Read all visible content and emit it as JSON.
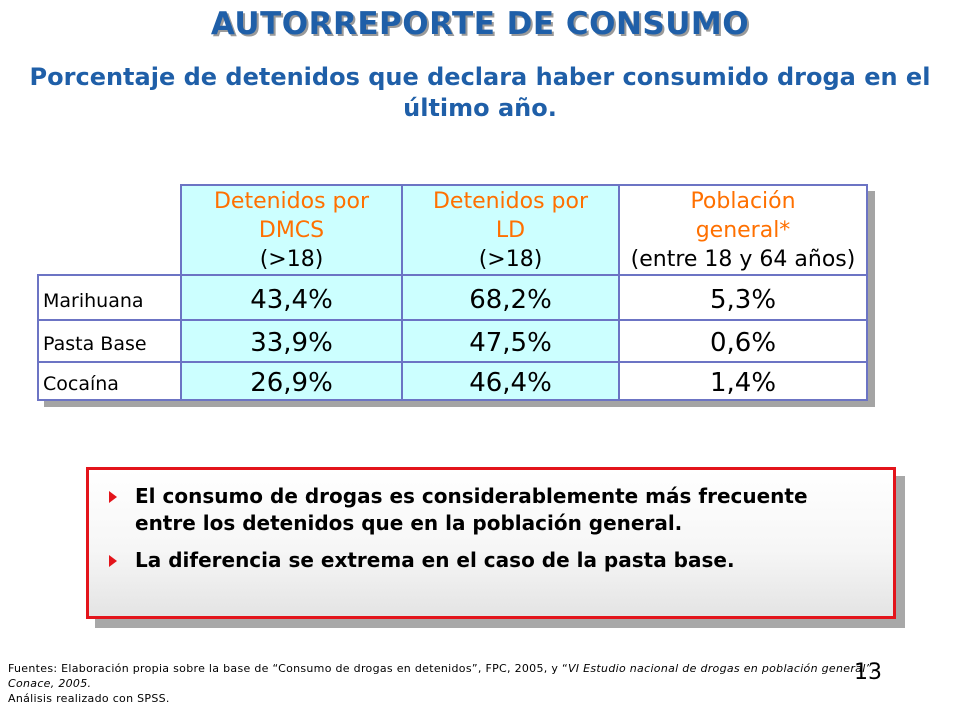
{
  "slide": {
    "title": "AUTORREPORTE DE CONSUMO",
    "subtitle": "Porcentaje de detenidos que declara haber consumido droga en el último año."
  },
  "table": {
    "headers": [
      {
        "line1": "Detenidos por",
        "line2": "DMCS",
        "line3": "(>18)"
      },
      {
        "line1": "Detenidos por",
        "line2": "LD",
        "line3": "(>18)"
      },
      {
        "line1": "Población",
        "line2": "general*",
        "line3": "(entre 18 y 64 años)"
      }
    ],
    "rows": [
      {
        "label": "Marihuana",
        "values": [
          "43,4%",
          "68,2%",
          "5,3%"
        ]
      },
      {
        "label": "Pasta Base",
        "values": [
          "33,9%",
          "47,5%",
          "0,6%"
        ]
      },
      {
        "label": "Cocaína",
        "values": [
          "26,9%",
          "46,4%",
          "1,4%"
        ]
      }
    ]
  },
  "callout": {
    "bullets": [
      "El consumo de drogas es considerablemente más frecuente entre los detenidos que en la población general.",
      "La diferencia se extrema en el caso de la pasta base."
    ]
  },
  "footnote": {
    "part1": "Fuentes: Elaboración propia sobre la base de “Consumo de drogas en detenidos”, FPC, 2005, y “",
    "part2_italic": "VI Estudio nacional de drogas en población general”, Conace, 2005.",
    "line3": "Análisis realizado con SPSS."
  },
  "page_number": "13",
  "colors": {
    "title": "#1F5FA8",
    "header_text": "#ff7000",
    "cell_cyan": "#ccffff",
    "table_border": "#6c74c4",
    "callout_border": "#e3141b"
  }
}
